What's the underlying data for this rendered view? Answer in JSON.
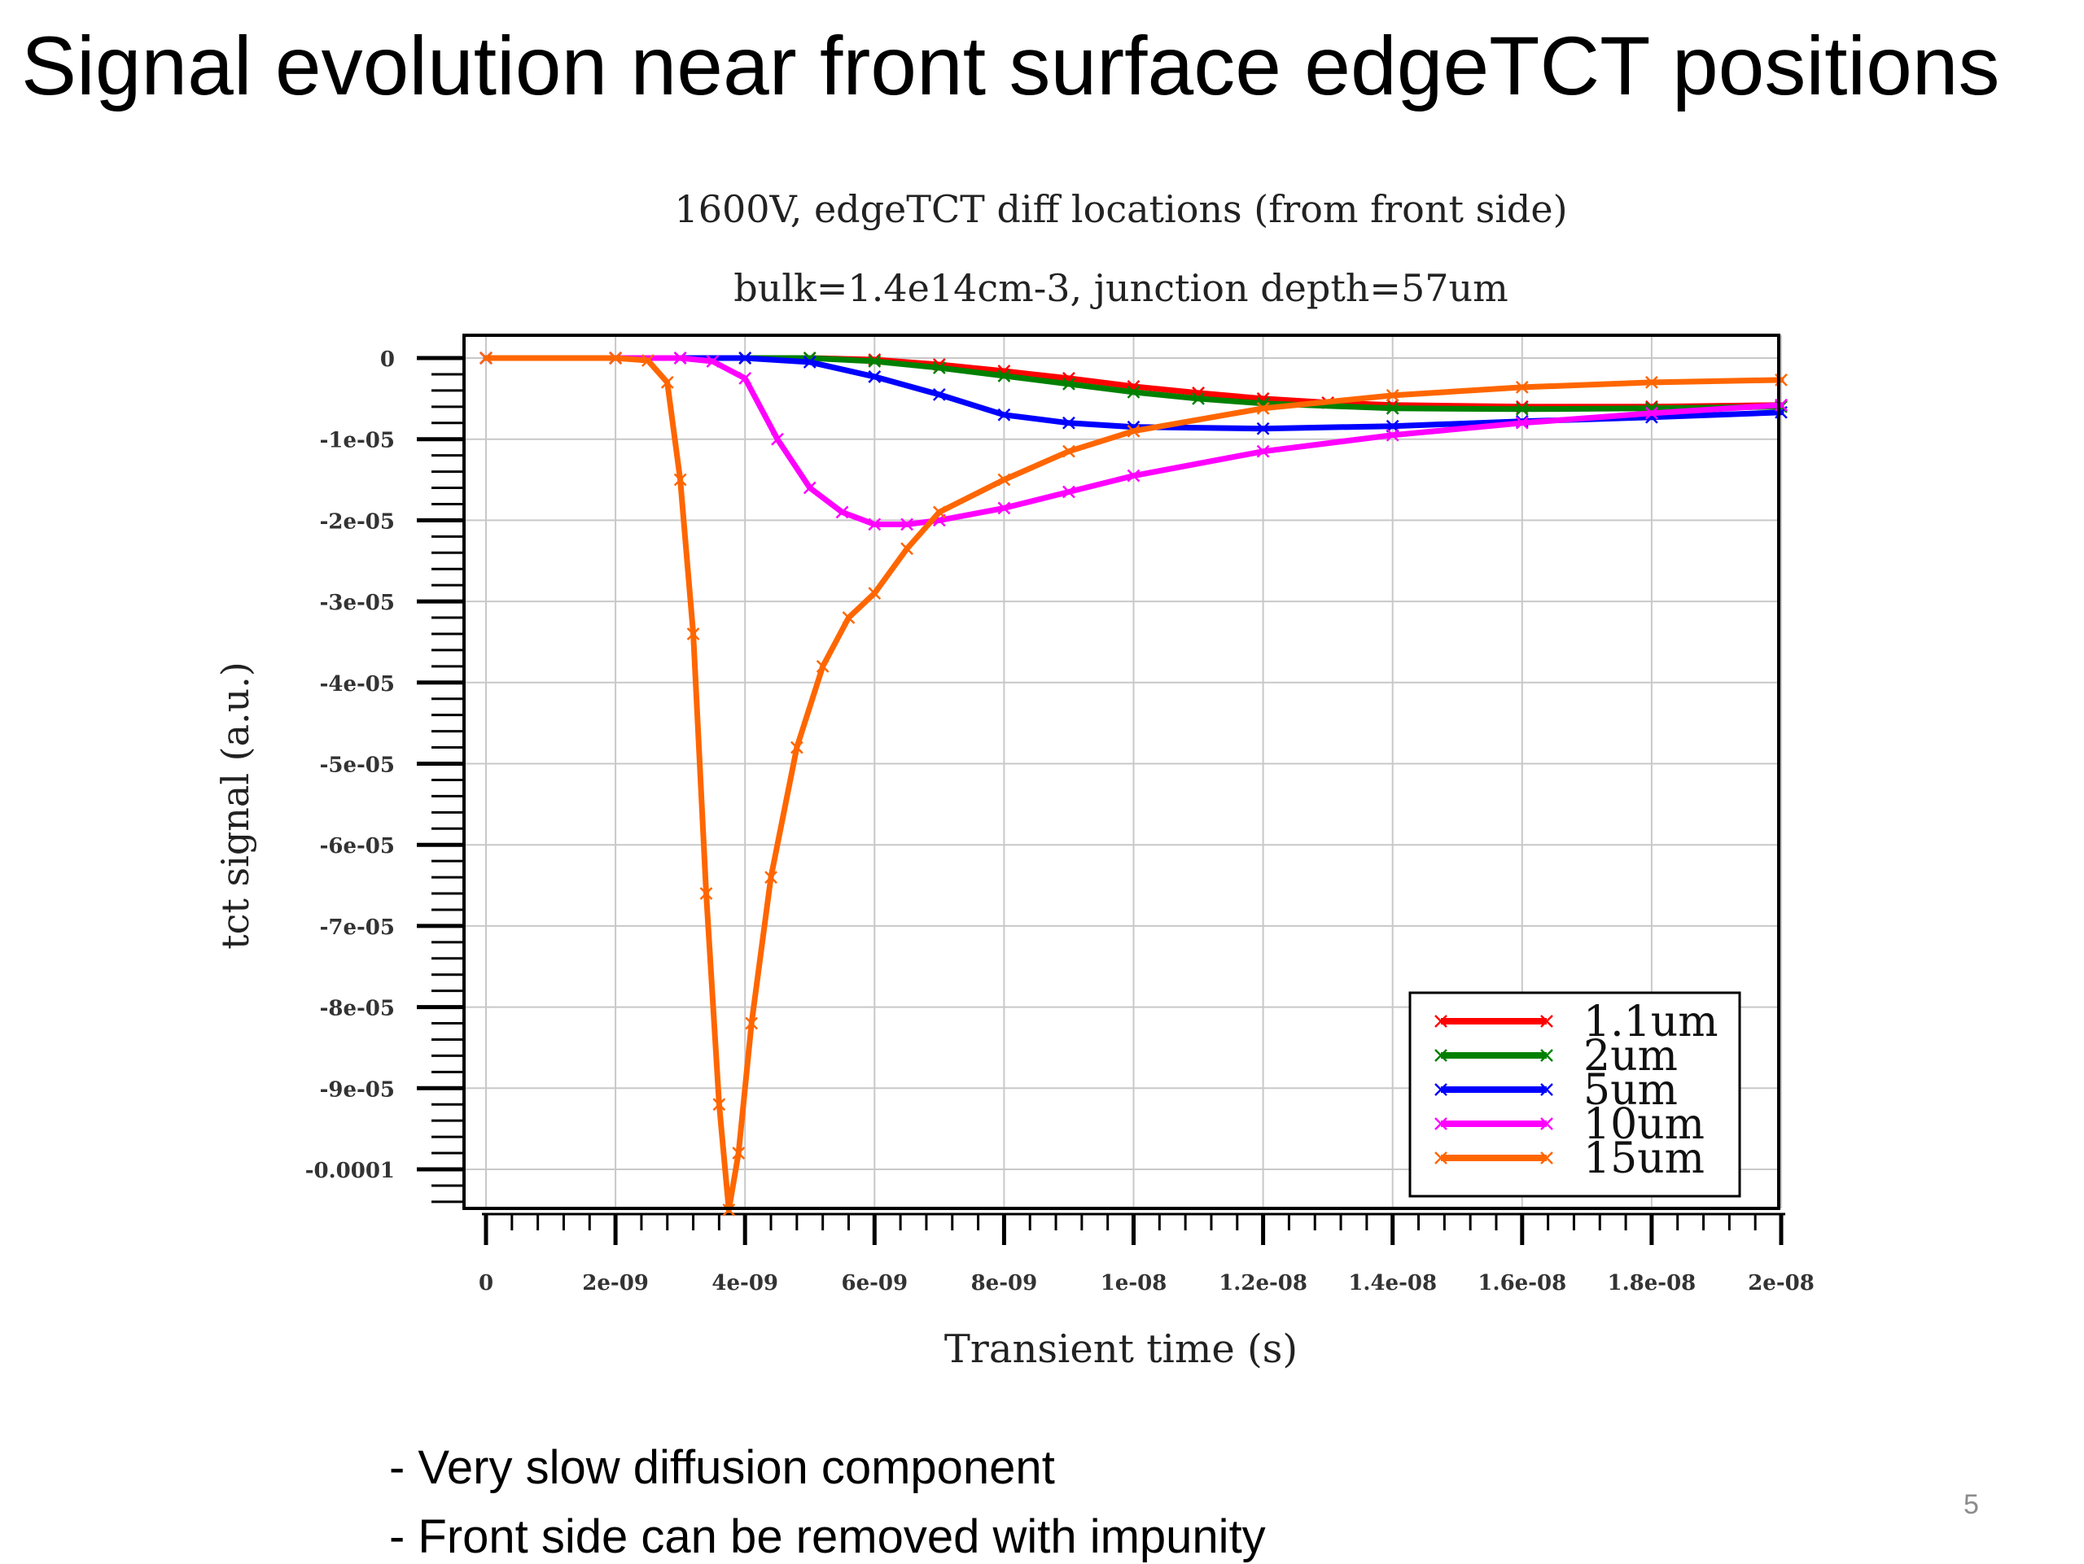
{
  "slide": {
    "title": "Signal evolution near front surface edgeTCT positions",
    "bullets": [
      "- Very slow diffusion component",
      "- Front side can be removed with impunity"
    ],
    "page_number": "5"
  },
  "chart_data": {
    "type": "line",
    "title": "1600V, edgeTCT diff locations (from front side)",
    "subtitle": "bulk=1.4e14cm-3, junction depth=57um",
    "xlabel": "Transient time (s)",
    "ylabel": "tct signal (a.u.)",
    "xlim": [
      0,
      2e-08
    ],
    "ylim": [
      -0.000105,
      0
    ],
    "x_ticks": [
      0,
      2e-09,
      4e-09,
      6e-09,
      8e-09,
      1e-08,
      1.2e-08,
      1.4e-08,
      1.6e-08,
      1.8e-08,
      2e-08
    ],
    "x_tick_labels": [
      "0",
      "2e-09",
      "4e-09",
      "6e-09",
      "8e-09",
      "1e-08",
      "1.2e-08",
      "1.4e-08",
      "1.6e-08",
      "1.8e-08",
      "2e-08"
    ],
    "y_ticks": [
      0,
      -1e-05,
      -2e-05,
      -3e-05,
      -4e-05,
      -5e-05,
      -6e-05,
      -7e-05,
      -8e-05,
      -9e-05,
      -0.0001
    ],
    "y_tick_labels": [
      "0",
      "-1e-05",
      "-2e-05",
      "-3e-05",
      "-4e-05",
      "-5e-05",
      "-6e-05",
      "-7e-05",
      "-8e-05",
      "-9e-05",
      "-0.0001"
    ],
    "grid": true,
    "legend_position": "bottom-right",
    "series": [
      {
        "name": "1.1um",
        "color": "#ff0000",
        "x": [
          0,
          2e-09,
          4e-09,
          5e-09,
          6e-09,
          7e-09,
          8e-09,
          9e-09,
          1e-08,
          1.1e-08,
          1.2e-08,
          1.3e-08,
          1.4e-08,
          1.6e-08,
          1.8e-08,
          2e-08
        ],
        "y": [
          0,
          0,
          0,
          0,
          -2e-07,
          -8e-07,
          -1.6e-06,
          -2.5e-06,
          -3.5e-06,
          -4.3e-06,
          -5e-06,
          -5.5e-06,
          -5.8e-06,
          -6e-06,
          -6e-06,
          -5.8e-06
        ]
      },
      {
        "name": "2um",
        "color": "#008000",
        "x": [
          0,
          2e-09,
          4e-09,
          5e-09,
          6e-09,
          7e-09,
          8e-09,
          9e-09,
          1e-08,
          1.1e-08,
          1.2e-08,
          1.4e-08,
          1.6e-08,
          1.8e-08,
          2e-08
        ],
        "y": [
          0,
          0,
          0,
          0,
          -4e-07,
          -1.2e-06,
          -2.2e-06,
          -3.2e-06,
          -4.2e-06,
          -5e-06,
          -5.6e-06,
          -6.2e-06,
          -6.3e-06,
          -6.2e-06,
          -6e-06
        ]
      },
      {
        "name": "5um",
        "color": "#0000ff",
        "x": [
          0,
          2e-09,
          3e-09,
          4e-09,
          5e-09,
          6e-09,
          7e-09,
          8e-09,
          9e-09,
          1e-08,
          1.2e-08,
          1.4e-08,
          1.6e-08,
          1.8e-08,
          2e-08
        ],
        "y": [
          0,
          0,
          0,
          0,
          -5e-07,
          -2.3e-06,
          -4.5e-06,
          -7e-06,
          -8e-06,
          -8.5e-06,
          -8.7e-06,
          -8.4e-06,
          -7.8e-06,
          -7.3e-06,
          -6.7e-06
        ]
      },
      {
        "name": "10um",
        "color": "#ff00ff",
        "x": [
          0,
          2e-09,
          3e-09,
          3.5e-09,
          4e-09,
          4.5e-09,
          5e-09,
          5.5e-09,
          6e-09,
          6.5e-09,
          7e-09,
          8e-09,
          9e-09,
          1e-08,
          1.2e-08,
          1.4e-08,
          1.6e-08,
          1.8e-08,
          2e-08
        ],
        "y": [
          0,
          0,
          0,
          -4e-07,
          -2.5e-06,
          -1e-05,
          -1.6e-05,
          -1.9e-05,
          -2.05e-05,
          -2.05e-05,
          -2e-05,
          -1.85e-05,
          -1.65e-05,
          -1.45e-05,
          -1.15e-05,
          -9.5e-06,
          -8e-06,
          -6.8e-06,
          -5.8e-06
        ]
      },
      {
        "name": "15um",
        "color": "#ff6600",
        "x": [
          0,
          2e-09,
          2.5e-09,
          2.8e-09,
          3e-09,
          3.2e-09,
          3.4e-09,
          3.6e-09,
          3.75e-09,
          3.9e-09,
          4.1e-09,
          4.4e-09,
          4.8e-09,
          5.2e-09,
          5.6e-09,
          6e-09,
          6.5e-09,
          7e-09,
          8e-09,
          9e-09,
          1e-08,
          1.2e-08,
          1.4e-08,
          1.6e-08,
          1.8e-08,
          2e-08
        ],
        "y": [
          0,
          0,
          -3e-07,
          -3e-06,
          -1.5e-05,
          -3.4e-05,
          -6.6e-05,
          -9.2e-05,
          -0.000105,
          -9.8e-05,
          -8.2e-05,
          -6.4e-05,
          -4.8e-05,
          -3.8e-05,
          -3.2e-05,
          -2.9e-05,
          -2.35e-05,
          -1.9e-05,
          -1.5e-05,
          -1.15e-05,
          -9e-06,
          -6.2e-06,
          -4.6e-06,
          -3.6e-06,
          -3e-06,
          -2.7e-06
        ]
      }
    ]
  }
}
